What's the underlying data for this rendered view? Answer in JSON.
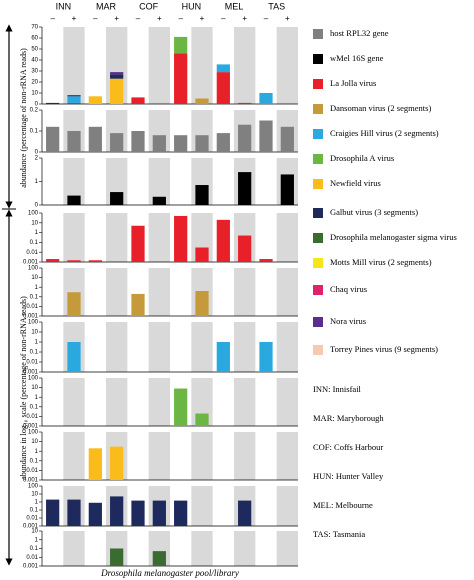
{
  "column_headers": [
    "INN",
    "MAR",
    "COF",
    "HUN",
    "MEL",
    "TAS"
  ],
  "conditions": [
    "–",
    "+"
  ],
  "y_axis_labels": [
    "abundance (percentage of non-rRNA reads)",
    "abundance in log₁₀ scale (percentage of non-rRNA reads)"
  ],
  "x_axis_label": "Drosophila melanogaster pool/library",
  "legend": [
    {
      "name": "host RPL32 gene",
      "color": "#808080"
    },
    {
      "name": "wMel 16S gene",
      "color": "#000000"
    },
    {
      "name": "La Jolla virus",
      "color": "#e8202a"
    },
    {
      "name": "Dansoman virus (2 segments)",
      "color": "#c49a3a"
    },
    {
      "name": "Craigies Hill virus (2 segments)",
      "color": "#29a9e0"
    },
    {
      "name": "Drosophila A virus",
      "color": "#6cb643"
    },
    {
      "name": "Newfield virus",
      "color": "#fbbb1a"
    },
    {
      "name": "Galbut virus (3 segments)",
      "color": "#1f2a5c"
    },
    {
      "name": "Drosophila melanogaster sigma virus",
      "color": "#3a6b30"
    },
    {
      "name": "Motts Mill virus (2 segments)",
      "color": "#f5e61a"
    },
    {
      "name": "Chaq virus",
      "color": "#e0226d"
    },
    {
      "name": "Nora virus",
      "color": "#5c2d91"
    },
    {
      "name": "Torrey Pines virus (9 segments)",
      "color": "#f7c9b0"
    }
  ],
  "site_key": [
    "INN: Innisfail",
    "MAR: Maryborough",
    "COF: Coffs Harbour",
    "HUN: Hunter Valley",
    "MEL: Melbourne",
    "TAS: Tasmania"
  ],
  "chart_data": [
    {
      "type": "stacked_bar",
      "ylim": [
        0,
        70
      ],
      "yticks": [
        0,
        10,
        20,
        30,
        40,
        50,
        60,
        70
      ],
      "series": [
        {
          "color": "#e8202a",
          "values": [
            null,
            1,
            null,
            null,
            6,
            null,
            46,
            null,
            29,
            1,
            null,
            null
          ]
        },
        {
          "color": "#6cb643",
          "values": [
            null,
            null,
            null,
            null,
            null,
            null,
            15,
            null,
            null,
            null,
            null,
            null
          ]
        },
        {
          "color": "#29a9e0",
          "values": [
            null,
            6,
            null,
            null,
            null,
            null,
            null,
            null,
            7,
            null,
            10,
            null
          ]
        },
        {
          "color": "#c49a3a",
          "values": [
            null,
            null,
            null,
            null,
            null,
            null,
            null,
            5,
            null,
            null,
            null,
            null
          ]
        },
        {
          "color": "#fbbb1a",
          "values": [
            null,
            null,
            7,
            23,
            null,
            null,
            null,
            null,
            null,
            null,
            null,
            null
          ]
        },
        {
          "color": "#1f2a5c",
          "values": [
            1,
            1,
            null,
            4,
            null,
            null,
            null,
            null,
            null,
            null,
            null,
            null
          ]
        },
        {
          "color": "#5c2d91",
          "values": [
            null,
            null,
            null,
            2,
            null,
            null,
            null,
            null,
            null,
            null,
            null,
            null
          ]
        }
      ]
    },
    {
      "type": "bar",
      "ylim": [
        0,
        0.2
      ],
      "yticks": [
        0,
        0.1,
        0.2
      ],
      "series": [
        {
          "color": "#808080",
          "values": [
            0.12,
            0.1,
            0.12,
            0.09,
            0.1,
            0.08,
            0.08,
            0.08,
            0.09,
            0.13,
            0.15,
            0.12
          ]
        }
      ]
    },
    {
      "type": "bar",
      "ylim": [
        0,
        2
      ],
      "yticks": [
        0,
        1,
        2
      ],
      "series": [
        {
          "color": "#000000",
          "values": [
            null,
            0.4,
            null,
            0.55,
            null,
            0.35,
            null,
            0.85,
            null,
            1.4,
            null,
            1.3
          ]
        }
      ]
    },
    {
      "type": "bar",
      "log": true,
      "ylim": [
        0.001,
        100
      ],
      "yticks": [
        0.001,
        0.01,
        0.1,
        1,
        10,
        100
      ],
      "series": [
        {
          "color": "#e8202a",
          "values": [
            0.002,
            0.0015,
            0.0015,
            null,
            5,
            null,
            50,
            0.03,
            20,
            0.5,
            0.002,
            null
          ]
        }
      ]
    },
    {
      "type": "bar",
      "log": true,
      "ylim": [
        0.001,
        100
      ],
      "yticks": [
        0.001,
        0.01,
        0.1,
        1,
        10,
        100
      ],
      "series": [
        {
          "color": "#c49a3a",
          "values": [
            null,
            0.3,
            null,
            null,
            0.2,
            null,
            null,
            0.4,
            null,
            null,
            null,
            null
          ]
        }
      ]
    },
    {
      "type": "bar",
      "log": true,
      "ylim": [
        0.001,
        100
      ],
      "yticks": [
        0.001,
        0.01,
        0.1,
        1,
        10,
        100
      ],
      "series": [
        {
          "color": "#29a9e0",
          "values": [
            null,
            1,
            null,
            null,
            null,
            null,
            null,
            null,
            1,
            null,
            1,
            null
          ]
        }
      ]
    },
    {
      "type": "bar",
      "log": true,
      "ylim": [
        0.001,
        100
      ],
      "yticks": [
        0.001,
        0.01,
        0.1,
        1,
        10,
        100
      ],
      "series": [
        {
          "color": "#6cb643",
          "values": [
            null,
            null,
            null,
            null,
            null,
            null,
            8,
            0.02,
            null,
            null,
            null,
            null
          ]
        }
      ]
    },
    {
      "type": "bar",
      "log": true,
      "ylim": [
        0.001,
        100
      ],
      "yticks": [
        0.001,
        0.01,
        0.1,
        1,
        10,
        100
      ],
      "series": [
        {
          "color": "#fbbb1a",
          "values": [
            null,
            null,
            2,
            3,
            null,
            null,
            null,
            null,
            null,
            null,
            null,
            null
          ]
        }
      ]
    },
    {
      "type": "bar",
      "log": true,
      "ylim": [
        0.001,
        100
      ],
      "yticks": [
        0.001,
        0.01,
        0.1,
        1,
        10,
        100
      ],
      "series": [
        {
          "color": "#1f2a5c",
          "values": [
            2,
            2,
            0.8,
            5,
            1.5,
            1.5,
            1.5,
            null,
            null,
            1.5,
            null,
            null
          ]
        }
      ]
    },
    {
      "type": "bar",
      "log": true,
      "ylim": [
        0.001,
        10
      ],
      "yticks": [
        0.001,
        0.01,
        0.1,
        1,
        10
      ],
      "series": [
        {
          "color": "#3a6b30",
          "values": [
            null,
            null,
            null,
            0.1,
            null,
            0.05,
            null,
            null,
            null,
            null,
            null,
            null
          ]
        }
      ]
    }
  ]
}
